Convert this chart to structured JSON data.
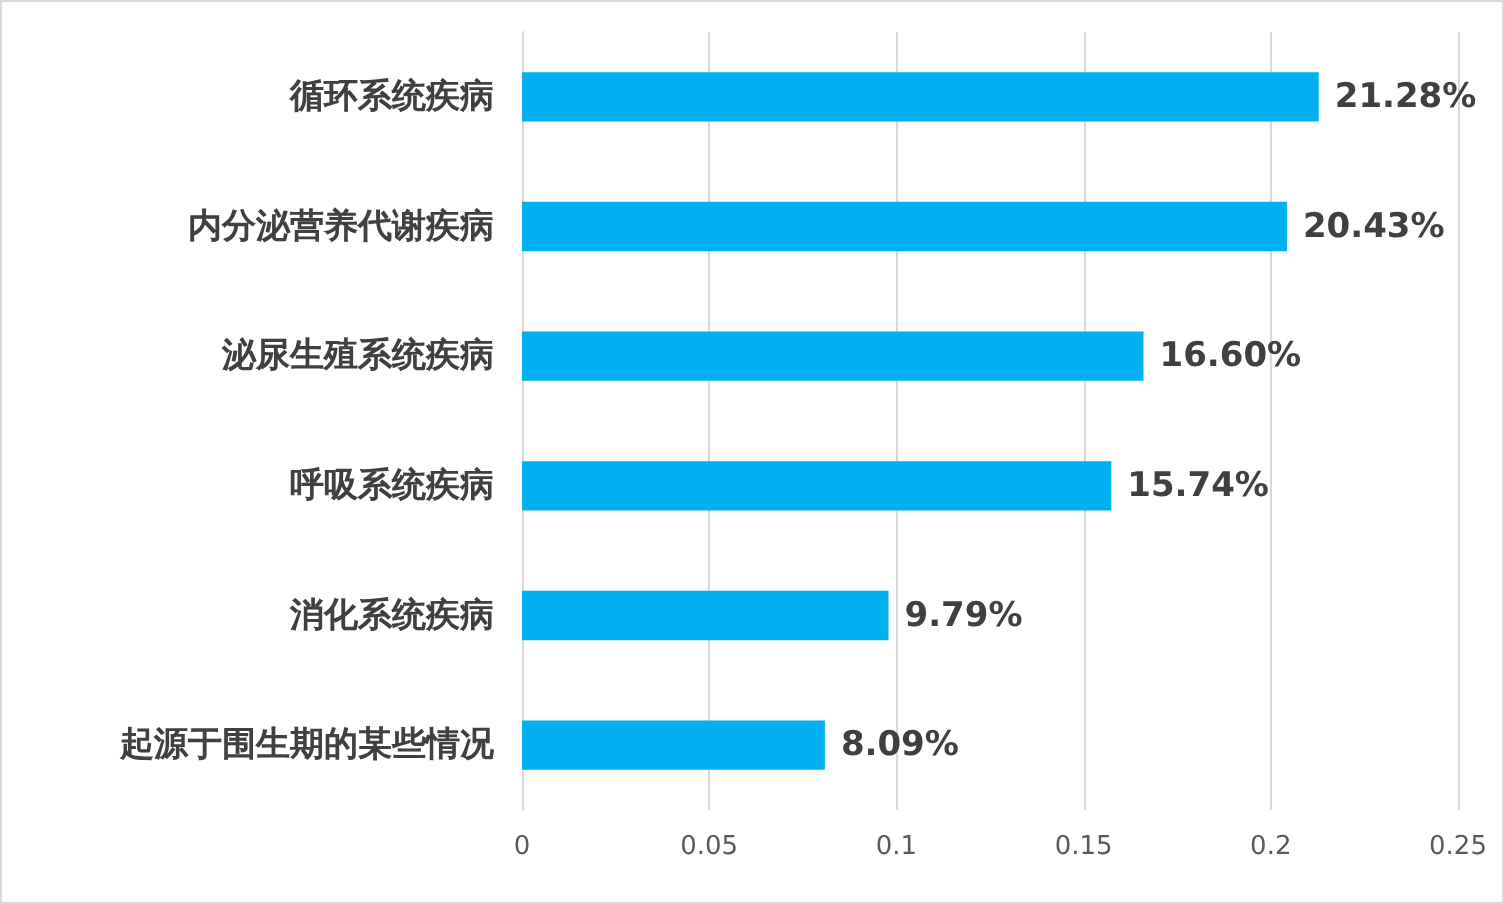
{
  "chart_data": {
    "type": "bar",
    "orientation": "horizontal",
    "categories": [
      "循环系统疾病",
      "内分泌营养代谢疾病",
      "泌尿生殖系统疾病",
      "呼吸系统疾病",
      "消化系统疾病",
      "起源于围生期的某些情况"
    ],
    "values": [
      0.2128,
      0.2043,
      0.166,
      0.1574,
      0.0979,
      0.0809
    ],
    "value_labels": [
      "21.28%",
      "20.43%",
      "16.60%",
      "15.74%",
      "9.79%",
      "8.09%"
    ],
    "color": "#00b0f0",
    "xlim": [
      0,
      0.25
    ],
    "xticks": [
      0,
      0.05,
      0.1,
      0.15,
      0.2,
      0.25
    ],
    "grid": "x"
  }
}
